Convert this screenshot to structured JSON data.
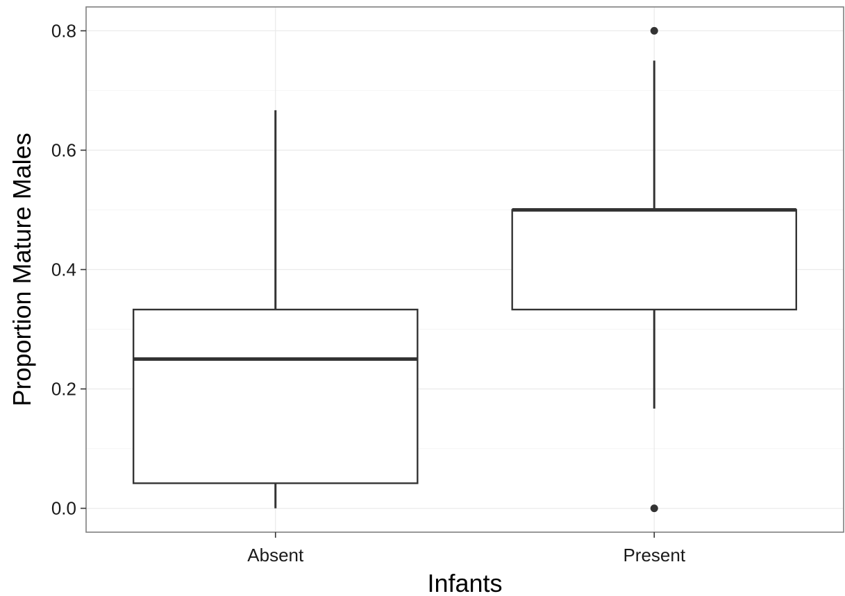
{
  "chart_data": {
    "type": "boxplot",
    "xlabel": "Infants",
    "ylabel": "Proportion Mature Males",
    "ylim": [
      -0.04,
      0.84
    ],
    "yticks": [
      0.0,
      0.2,
      0.4,
      0.6,
      0.8
    ],
    "ytick_labels": [
      "0.0",
      "0.2",
      "0.4",
      "0.6",
      "0.8"
    ],
    "categories": [
      "Absent",
      "Present"
    ],
    "boxes": [
      {
        "category": "Absent",
        "whisker_low": 0.0,
        "q1": 0.042,
        "median": 0.25,
        "q3": 0.333,
        "whisker_high": 0.667,
        "outliers": []
      },
      {
        "category": "Present",
        "whisker_low": 0.167,
        "q1": 0.333,
        "median": 0.5,
        "q3": 0.5,
        "whisker_high": 0.75,
        "outliers": [
          0.0,
          0.8
        ]
      }
    ],
    "grid": true,
    "colors": {
      "grid": "#ebebeb",
      "box": "#333333",
      "panel_border": "#7f7f7f",
      "background": "#ffffff"
    }
  }
}
